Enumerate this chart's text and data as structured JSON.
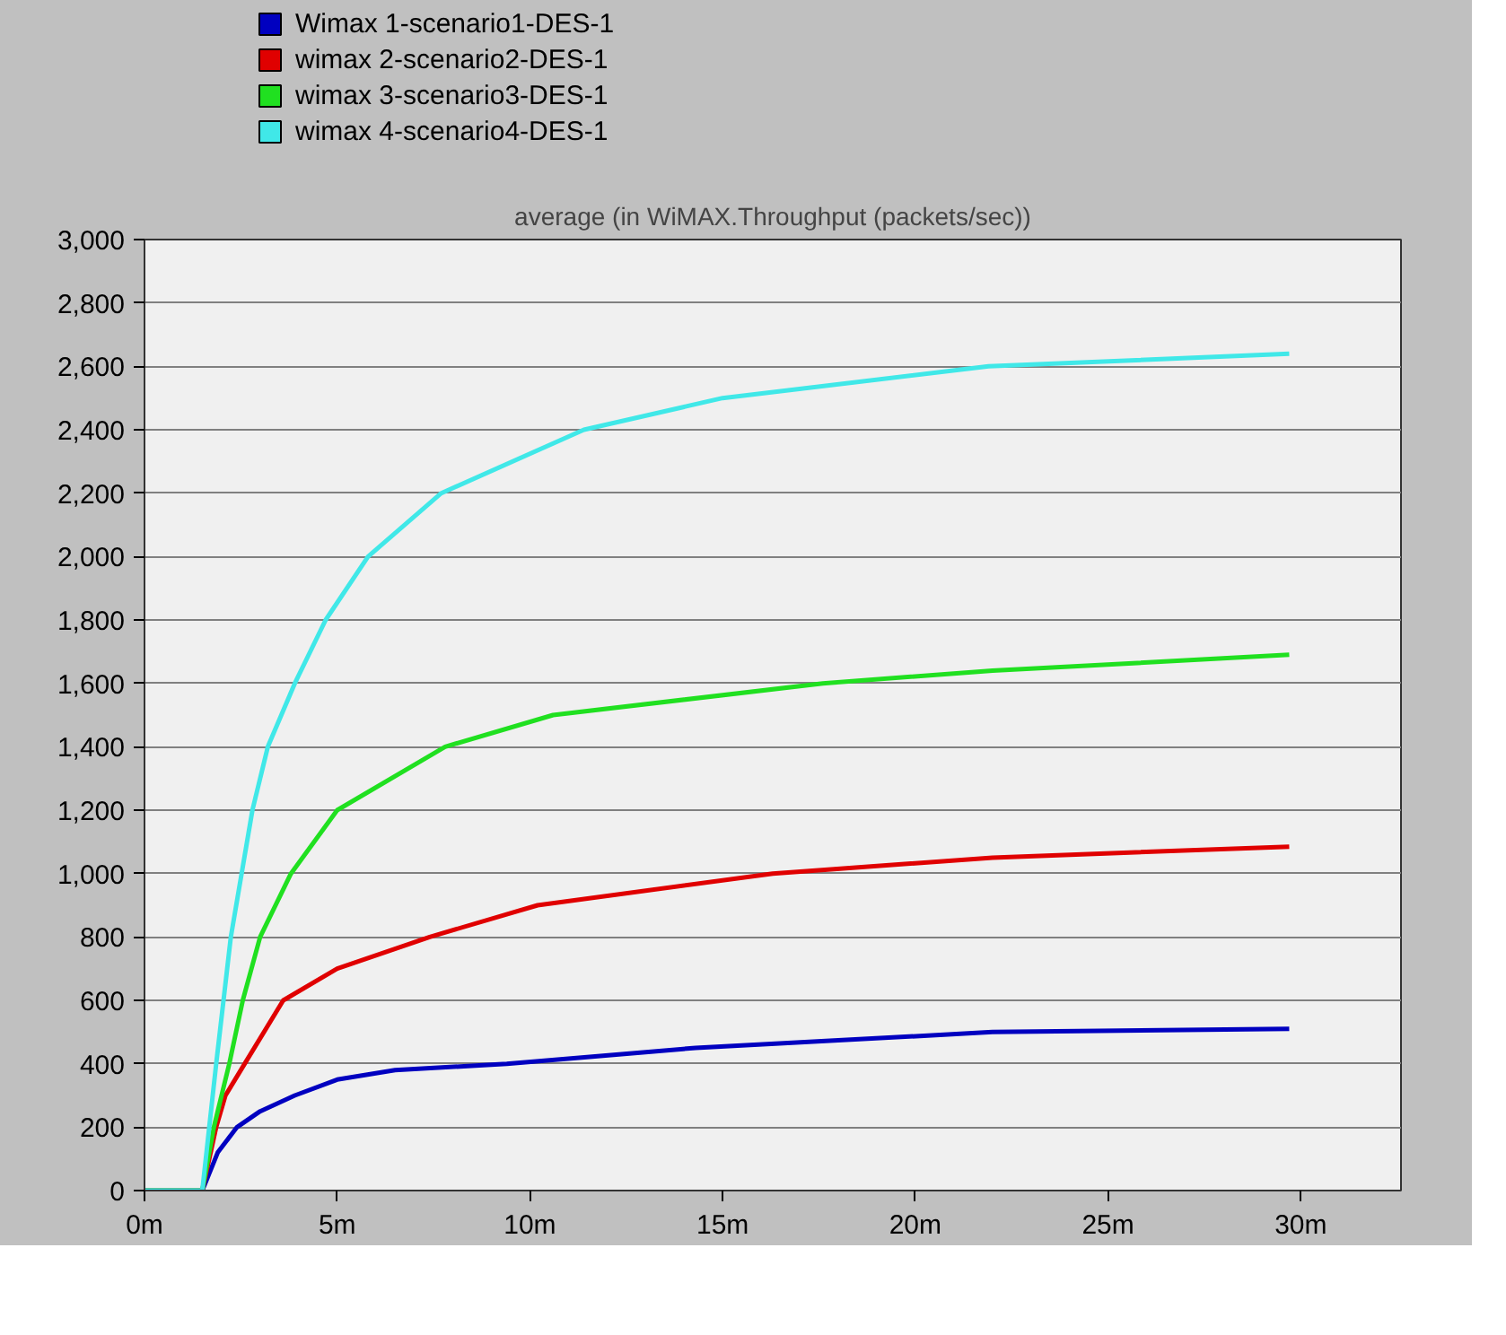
{
  "chart_data": {
    "type": "line",
    "title": "average (in WiMAX.Throughput (packets/sec))",
    "xlim": [
      0,
      32.6
    ],
    "ylim": [
      0,
      3000
    ],
    "xticks": [
      {
        "value": 0,
        "label": "0m"
      },
      {
        "value": 5,
        "label": "5m"
      },
      {
        "value": 10,
        "label": "10m"
      },
      {
        "value": 15,
        "label": "15m"
      },
      {
        "value": 20,
        "label": "20m"
      },
      {
        "value": 25,
        "label": "25m"
      },
      {
        "value": 30,
        "label": "30m"
      }
    ],
    "yticks": [
      0,
      {
        "value": 200,
        "label": "200"
      },
      {
        "value": 400,
        "label": "400"
      },
      {
        "value": 600,
        "label": "600"
      },
      {
        "value": 800,
        "label": "800"
      },
      {
        "value": 1000,
        "label": "1,000"
      },
      {
        "value": 1200,
        "label": "1,200"
      },
      {
        "value": 1400,
        "label": "1,400"
      },
      {
        "value": 1600,
        "label": "1,600"
      },
      {
        "value": 1800,
        "label": "1,800"
      },
      {
        "value": 2000,
        "label": "2,000"
      },
      {
        "value": 2200,
        "label": "2,200"
      },
      {
        "value": 2400,
        "label": "2,400"
      },
      {
        "value": 2600,
        "label": "2,600"
      },
      {
        "value": 2800,
        "label": "2,800"
      },
      {
        "value": 3000,
        "label": "3,000"
      }
    ],
    "grid": "y",
    "legend": "top",
    "marker": "none",
    "line_style": "solid",
    "series": [
      {
        "name": "Wimax 1-scenario1-DES-1",
        "color": "#0000c0",
        "x": [
          0,
          1.5,
          1.9,
          2.4,
          3.0,
          3.9,
          5.0,
          6.5,
          9.4,
          14.3,
          22,
          29.7
        ],
        "values": [
          0,
          0,
          120,
          200,
          250,
          300,
          350,
          380,
          400,
          450,
          500,
          510
        ]
      },
      {
        "name": "wimax 2-scenario2-DES-1",
        "color": "#e00000",
        "x": [
          0,
          1.5,
          1.86,
          2.1,
          2.6,
          3.6,
          5.0,
          7.4,
          10.2,
          16.3,
          22,
          29.7
        ],
        "values": [
          0,
          0,
          200,
          300,
          400,
          600,
          700,
          800,
          900,
          1000,
          1050,
          1085
        ]
      },
      {
        "name": "wimax 3-scenario3-DES-1",
        "color": "#20e020",
        "x": [
          0,
          1.5,
          1.8,
          2.2,
          2.55,
          3.0,
          3.8,
          5.0,
          7.8,
          10.6,
          17.6,
          22,
          29.7
        ],
        "values": [
          0,
          0,
          200,
          400,
          600,
          800,
          1000,
          1200,
          1400,
          1500,
          1600,
          1640,
          1690
        ]
      },
      {
        "name": "wimax 4-scenario4-DES-1",
        "color": "#40e8e8",
        "x": [
          0,
          1.5,
          1.86,
          2.24,
          2.8,
          3.2,
          3.9,
          4.7,
          5.8,
          7.7,
          11.4,
          15,
          21.9,
          29.7
        ],
        "values": [
          0,
          0,
          400,
          800,
          1200,
          1400,
          1600,
          1800,
          2000,
          2200,
          2400,
          2500,
          2600,
          2640
        ]
      }
    ]
  }
}
